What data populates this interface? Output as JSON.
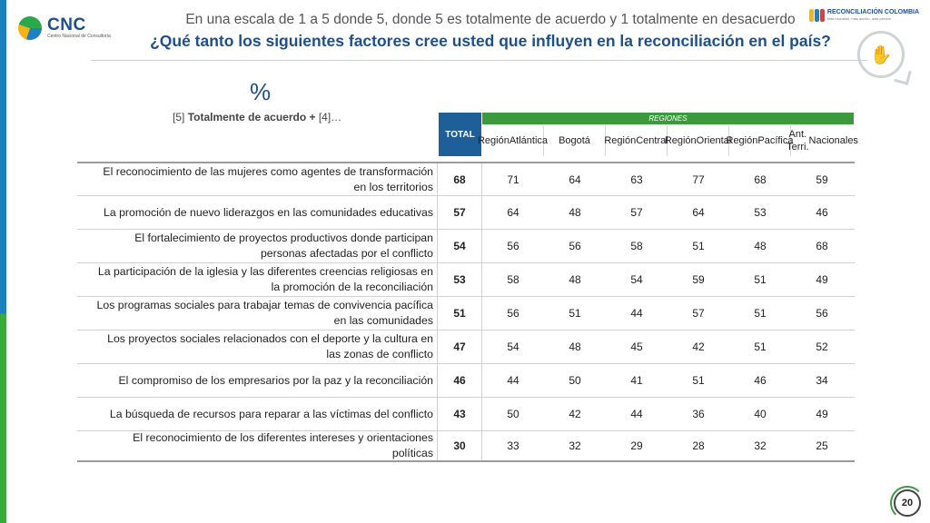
{
  "brand": {
    "name": "CNC",
    "tagline": "Centro Nacional de Consultoría"
  },
  "partner": {
    "name": "RECONCILIACIÓN COLOMBIA",
    "tagline": "Más inclusión, más acción, más perdón"
  },
  "header": {
    "subtitle": "En una escala de 1 a 5 donde 5, donde 5 es totalmente de acuerdo y 1 totalmente en desacuerdo",
    "title": "¿Qué tanto los siguientes factores cree usted que influyen en la reconciliación en el país?"
  },
  "table": {
    "unit": "%",
    "note_bold": "Totalmente de acuerdo +",
    "note_prefix": "[5] ",
    "note_suffix": " [4]…",
    "total_label": "TOTAL",
    "group_label": "REGIONES",
    "columns": [
      {
        "line1": "Región",
        "line2": "Atlántica"
      },
      {
        "line1": "Bogotá",
        "line2": ""
      },
      {
        "line1": "Región",
        "line2": "Central"
      },
      {
        "line1": "Región",
        "line2": "Oriental"
      },
      {
        "line1": "Región",
        "line2": "Pacífica"
      },
      {
        "line1": "Ant. Terri.",
        "line2": "Nacionales"
      }
    ],
    "rows": [
      {
        "line1": "El reconocimiento de las mujeres como agentes de transformación",
        "line2": "en los territorios",
        "total": "68",
        "values": [
          "71",
          "64",
          "63",
          "77",
          "68",
          "59"
        ]
      },
      {
        "line1": "La promoción de nuevo liderazgos en las comunidades educativas",
        "line2": "",
        "total": "57",
        "values": [
          "64",
          "48",
          "57",
          "64",
          "53",
          "46"
        ]
      },
      {
        "line1": "El fortalecimiento de proyectos productivos donde participan",
        "line2": "personas afectadas por el conflicto",
        "total": "54",
        "values": [
          "56",
          "56",
          "58",
          "51",
          "48",
          "68"
        ]
      },
      {
        "line1": "La participación de la iglesia y las diferentes creencias religiosas en",
        "line2": "la promoción de la reconciliación",
        "total": "53",
        "values": [
          "58",
          "48",
          "54",
          "59",
          "51",
          "49"
        ]
      },
      {
        "line1": "Los programas sociales para trabajar temas de convivencia pacífica",
        "line2": "en las comunidades",
        "total": "51",
        "values": [
          "56",
          "51",
          "44",
          "57",
          "51",
          "56"
        ]
      },
      {
        "line1": "Los proyectos sociales relacionados con el deporte y la cultura en",
        "line2": "las zonas de conflicto",
        "total": "47",
        "values": [
          "54",
          "48",
          "45",
          "42",
          "51",
          "52"
        ]
      },
      {
        "line1": "El compromiso de los empresarios por la paz y la reconciliación",
        "line2": "",
        "total": "46",
        "values": [
          "44",
          "50",
          "41",
          "51",
          "46",
          "34"
        ]
      },
      {
        "line1": "La búsqueda de recursos para reparar a las víctimas del conflicto",
        "line2": "",
        "total": "43",
        "values": [
          "50",
          "42",
          "44",
          "36",
          "40",
          "49"
        ]
      },
      {
        "line1": "El reconocimiento de los diferentes intereses y orientaciones",
        "line2": "políticas",
        "total": "30",
        "values": [
          "33",
          "32",
          "29",
          "28",
          "32",
          "25"
        ]
      }
    ]
  },
  "page_number": "20",
  "colors": {
    "brand_blue": "#1e4f8c",
    "total_header": "#1e5f99",
    "regions_header": "#3b9a3c"
  }
}
